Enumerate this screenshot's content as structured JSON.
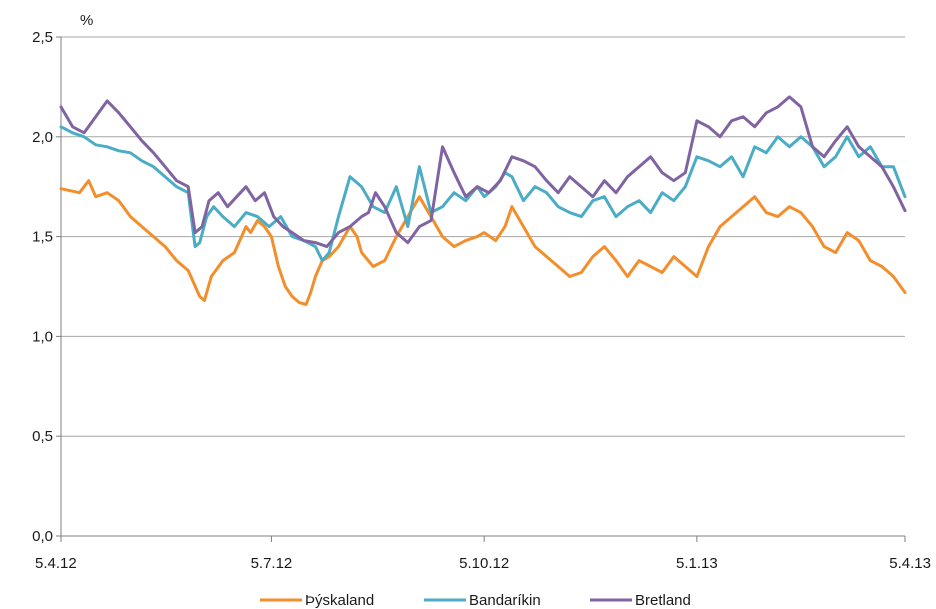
{
  "chart_data": {
    "type": "line",
    "ylabel": "%",
    "ylim": [
      0,
      2.5
    ],
    "yticks": [
      "0,0",
      "0,5",
      "1,0",
      "1,5",
      "2,0",
      "2,5"
    ],
    "yticks_values": [
      0,
      0.5,
      1.0,
      1.5,
      2.0,
      2.5
    ],
    "xticks": [
      "5.4.12",
      "5.7.12",
      "5.10.12",
      "5.1.13",
      "5.4.13"
    ],
    "xticks_values": [
      0,
      91,
      183,
      275,
      365
    ],
    "xlim": [
      0,
      365
    ],
    "grid": true,
    "legend_position": "bottom",
    "series": [
      {
        "name": "Þýskaland",
        "color": "#f28e2b",
        "x": [
          0,
          8,
          12,
          15,
          20,
          25,
          30,
          35,
          40,
          45,
          50,
          55,
          60,
          62,
          65,
          70,
          75,
          80,
          82,
          85,
          88,
          91,
          94,
          97,
          100,
          103,
          106,
          108,
          110,
          113,
          116,
          120,
          125,
          128,
          130,
          135,
          140,
          145,
          150,
          155,
          160,
          165,
          170,
          175,
          180,
          183,
          188,
          192,
          195,
          200,
          205,
          210,
          215,
          220,
          225,
          230,
          235,
          240,
          245,
          250,
          255,
          260,
          265,
          270,
          275,
          280,
          285,
          290,
          295,
          300,
          305,
          310,
          315,
          320,
          325,
          330,
          335,
          340,
          345,
          350,
          355,
          360,
          365
        ],
        "y": [
          1.74,
          1.72,
          1.78,
          1.7,
          1.72,
          1.68,
          1.6,
          1.55,
          1.5,
          1.45,
          1.38,
          1.33,
          1.2,
          1.18,
          1.3,
          1.38,
          1.42,
          1.55,
          1.52,
          1.58,
          1.55,
          1.5,
          1.35,
          1.25,
          1.2,
          1.17,
          1.16,
          1.22,
          1.3,
          1.38,
          1.4,
          1.45,
          1.55,
          1.5,
          1.42,
          1.35,
          1.38,
          1.5,
          1.6,
          1.7,
          1.6,
          1.5,
          1.45,
          1.48,
          1.5,
          1.52,
          1.48,
          1.55,
          1.65,
          1.55,
          1.45,
          1.4,
          1.35,
          1.3,
          1.32,
          1.4,
          1.45,
          1.38,
          1.3,
          1.38,
          1.35,
          1.32,
          1.4,
          1.35,
          1.3,
          1.45,
          1.55,
          1.6,
          1.65,
          1.7,
          1.62,
          1.6,
          1.65,
          1.62,
          1.55,
          1.45,
          1.42,
          1.52,
          1.48,
          1.38,
          1.35,
          1.3,
          1.22
        ]
      },
      {
        "name": "Bandaríkin",
        "color": "#4bacc6",
        "x": [
          0,
          5,
          10,
          15,
          20,
          25,
          30,
          35,
          40,
          45,
          50,
          55,
          58,
          60,
          63,
          66,
          70,
          75,
          80,
          85,
          90,
          95,
          100,
          105,
          110,
          113,
          116,
          120,
          125,
          130,
          135,
          140,
          145,
          150,
          155,
          160,
          165,
          170,
          175,
          180,
          183,
          188,
          192,
          195,
          200,
          205,
          210,
          215,
          220,
          225,
          230,
          235,
          240,
          245,
          250,
          255,
          260,
          265,
          270,
          275,
          280,
          285,
          290,
          295,
          300,
          305,
          310,
          315,
          320,
          325,
          330,
          335,
          340,
          345,
          350,
          355,
          360,
          365
        ],
        "y": [
          2.05,
          2.02,
          2.0,
          1.96,
          1.95,
          1.93,
          1.92,
          1.88,
          1.85,
          1.8,
          1.75,
          1.72,
          1.45,
          1.47,
          1.6,
          1.65,
          1.6,
          1.55,
          1.62,
          1.6,
          1.55,
          1.6,
          1.5,
          1.48,
          1.45,
          1.38,
          1.42,
          1.6,
          1.8,
          1.75,
          1.65,
          1.62,
          1.75,
          1.55,
          1.85,
          1.62,
          1.65,
          1.72,
          1.68,
          1.75,
          1.7,
          1.75,
          1.82,
          1.8,
          1.68,
          1.75,
          1.72,
          1.65,
          1.62,
          1.6,
          1.68,
          1.7,
          1.6,
          1.65,
          1.68,
          1.62,
          1.72,
          1.68,
          1.75,
          1.9,
          1.88,
          1.85,
          1.9,
          1.8,
          1.95,
          1.92,
          2.0,
          1.95,
          2.0,
          1.95,
          1.85,
          1.9,
          2.0,
          1.9,
          1.95,
          1.85,
          1.85,
          1.7
        ]
      },
      {
        "name": "Bretland",
        "color": "#8064a2",
        "x": [
          0,
          5,
          10,
          15,
          20,
          25,
          30,
          35,
          40,
          45,
          50,
          55,
          58,
          61,
          64,
          68,
          72,
          76,
          80,
          84,
          88,
          92,
          96,
          100,
          105,
          110,
          115,
          120,
          125,
          130,
          133,
          136,
          140,
          145,
          150,
          155,
          160,
          165,
          170,
          175,
          180,
          185,
          190,
          195,
          200,
          205,
          210,
          215,
          220,
          225,
          230,
          235,
          240,
          245,
          250,
          255,
          260,
          265,
          270,
          275,
          280,
          285,
          290,
          295,
          300,
          305,
          310,
          315,
          320,
          325,
          330,
          335,
          340,
          345,
          350,
          355,
          360,
          365
        ],
        "y": [
          2.15,
          2.05,
          2.02,
          2.1,
          2.18,
          2.12,
          2.05,
          1.98,
          1.92,
          1.85,
          1.78,
          1.75,
          1.52,
          1.55,
          1.68,
          1.72,
          1.65,
          1.7,
          1.75,
          1.68,
          1.72,
          1.6,
          1.55,
          1.52,
          1.48,
          1.47,
          1.45,
          1.52,
          1.55,
          1.6,
          1.62,
          1.72,
          1.65,
          1.52,
          1.47,
          1.55,
          1.58,
          1.95,
          1.82,
          1.7,
          1.75,
          1.72,
          1.78,
          1.9,
          1.88,
          1.85,
          1.78,
          1.72,
          1.8,
          1.75,
          1.7,
          1.78,
          1.72,
          1.8,
          1.85,
          1.9,
          1.82,
          1.78,
          1.82,
          2.08,
          2.05,
          2.0,
          2.08,
          2.1,
          2.05,
          2.12,
          2.15,
          2.2,
          2.15,
          1.95,
          1.9,
          1.98,
          2.05,
          1.95,
          1.9,
          1.85,
          1.75,
          1.63
        ]
      }
    ]
  }
}
